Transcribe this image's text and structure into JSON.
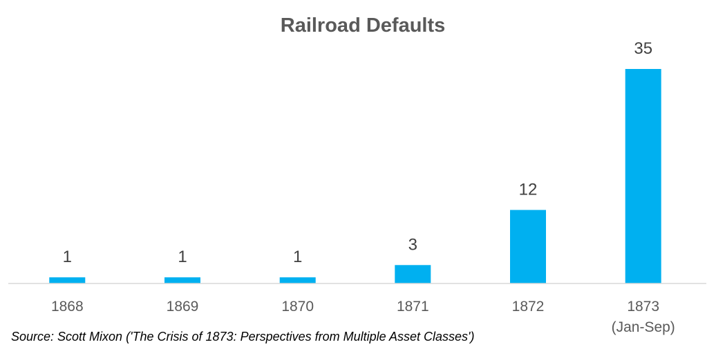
{
  "chart_data": {
    "type": "bar",
    "title": "Railroad Defaults",
    "categories": [
      [
        "1868"
      ],
      [
        "1869"
      ],
      [
        "1870"
      ],
      [
        "1871"
      ],
      [
        "1872"
      ],
      [
        "1873",
        "(Jan-Sep)"
      ]
    ],
    "values": [
      1,
      1,
      1,
      3,
      12,
      35
    ],
    "data_labels": [
      "1",
      "1",
      "1",
      "3",
      "12",
      "35"
    ],
    "xlabel": "",
    "ylabel": "",
    "ylim": [
      0,
      35
    ],
    "grid": false,
    "legend": "none",
    "colors": {
      "bar": "#00B0F0",
      "axis": "#D9D9D9",
      "title": "#595959",
      "labels": "#404040"
    }
  },
  "source": "Source: Scott Mixon ('The Crisis of 1873: Perspectives from Multiple Asset Classes')"
}
